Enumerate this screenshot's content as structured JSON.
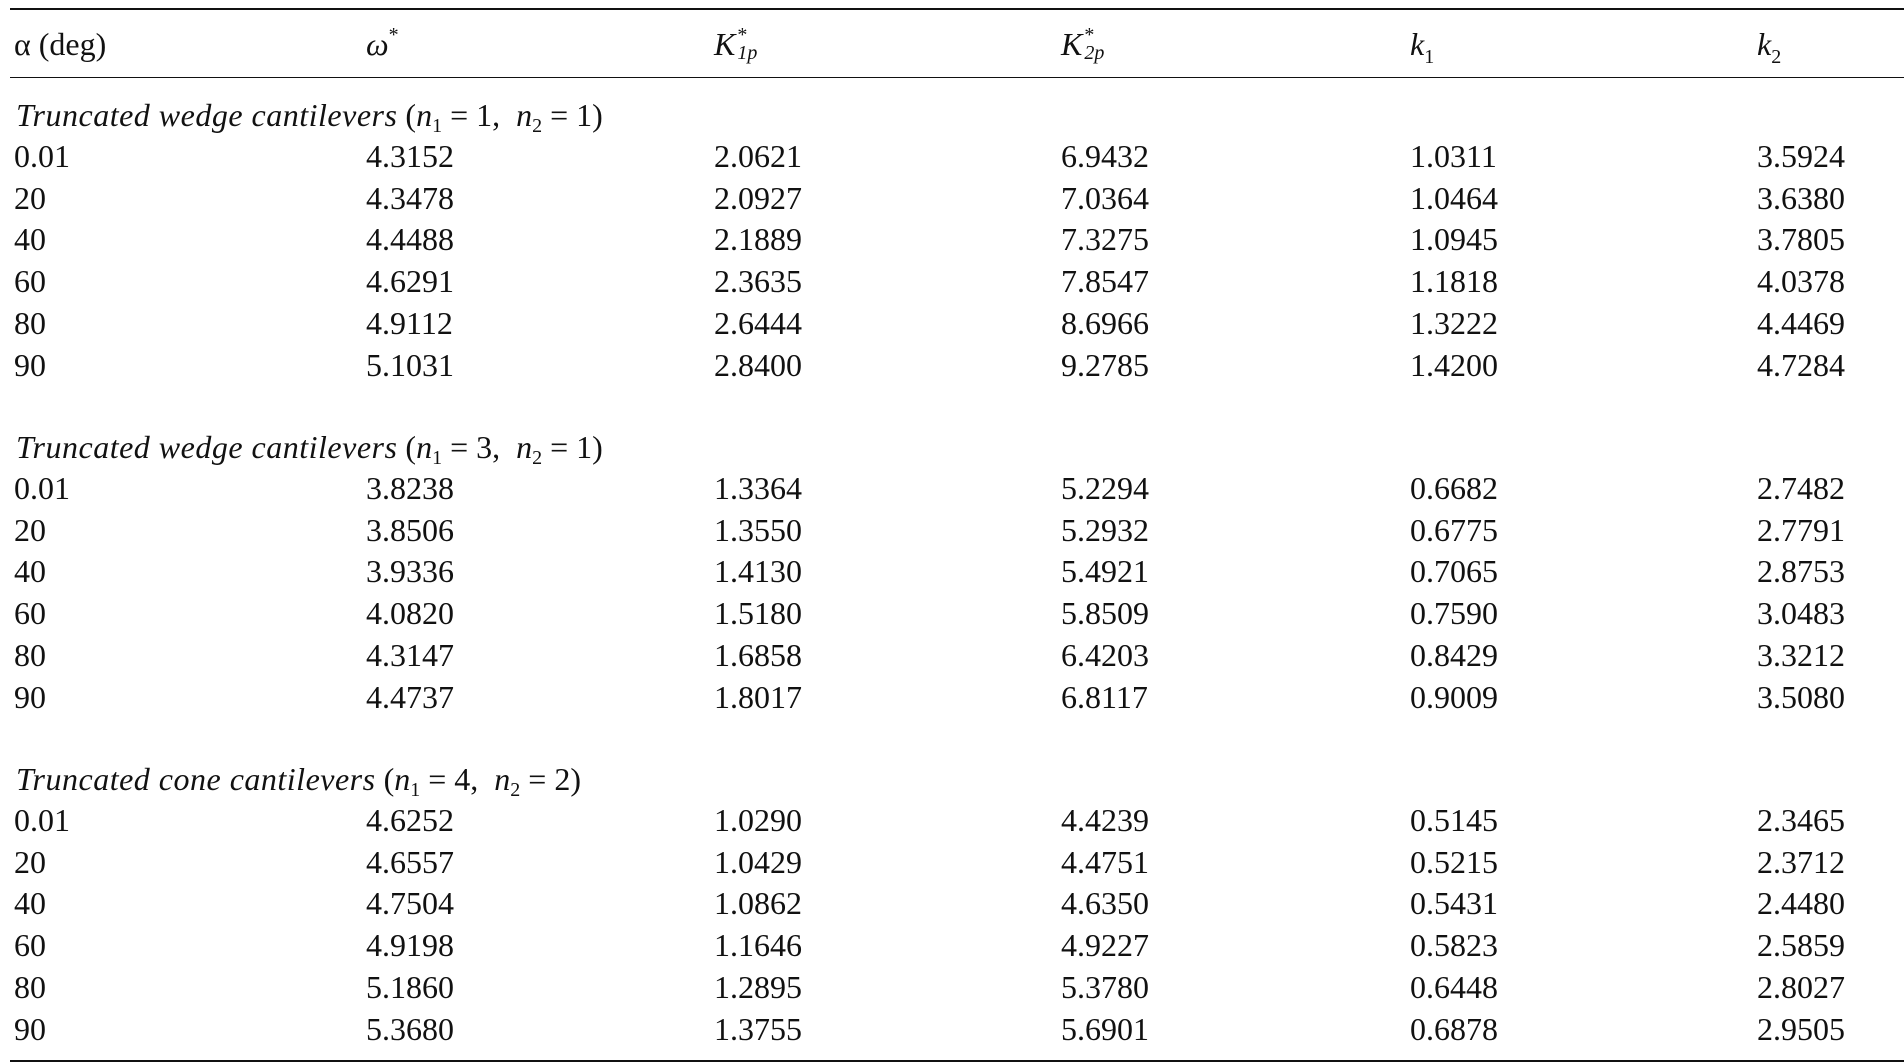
{
  "columns": {
    "alpha": "α (deg)",
    "omega": "ω",
    "omega_sup": "*",
    "K1p": "K",
    "K1p_sup": "*",
    "K1p_sub": "1p",
    "K2p": "K",
    "K2p_sup": "*",
    "K2p_sub": "2p",
    "k1": "k",
    "k1_sub": "1",
    "k2": "k",
    "k2_sub": "2"
  },
  "sections": [
    {
      "title": "Truncated wedge cantilevers",
      "params_open": "(",
      "n1_label": "n",
      "n1_sub": "1",
      "n1_eq": " = 1,  ",
      "n2_label": "n",
      "n2_sub": "2",
      "n2_eq": " = 1)",
      "rows": [
        [
          "0.01",
          "4.3152",
          "2.0621",
          "6.9432",
          "1.0311",
          "3.5924"
        ],
        [
          "20",
          "4.3478",
          "2.0927",
          "7.0364",
          "1.0464",
          "3.6380"
        ],
        [
          "40",
          "4.4488",
          "2.1889",
          "7.3275",
          "1.0945",
          "3.7805"
        ],
        [
          "60",
          "4.6291",
          "2.3635",
          "7.8547",
          "1.1818",
          "4.0378"
        ],
        [
          "80",
          "4.9112",
          "2.6444",
          "8.6966",
          "1.3222",
          "4.4469"
        ],
        [
          "90",
          "5.1031",
          "2.8400",
          "9.2785",
          "1.4200",
          "4.7284"
        ]
      ]
    },
    {
      "title": "Truncated wedge cantilevers",
      "params_open": "(",
      "n1_label": "n",
      "n1_sub": "1",
      "n1_eq": " = 3,  ",
      "n2_label": "n",
      "n2_sub": "2",
      "n2_eq": " = 1)",
      "rows": [
        [
          "0.01",
          "3.8238",
          "1.3364",
          "5.2294",
          "0.6682",
          "2.7482"
        ],
        [
          "20",
          "3.8506",
          "1.3550",
          "5.2932",
          "0.6775",
          "2.7791"
        ],
        [
          "40",
          "3.9336",
          "1.4130",
          "5.4921",
          "0.7065",
          "2.8753"
        ],
        [
          "60",
          "4.0820",
          "1.5180",
          "5.8509",
          "0.7590",
          "3.0483"
        ],
        [
          "80",
          "4.3147",
          "1.6858",
          "6.4203",
          "0.8429",
          "3.3212"
        ],
        [
          "90",
          "4.4737",
          "1.8017",
          "6.8117",
          "0.9009",
          "3.5080"
        ]
      ]
    },
    {
      "title": "Truncated cone cantilevers",
      "params_open": "(",
      "n1_label": "n",
      "n1_sub": "1",
      "n1_eq": " = 4,  ",
      "n2_label": "n",
      "n2_sub": "2",
      "n2_eq": " = 2)",
      "rows": [
        [
          "0.01",
          "4.6252",
          "1.0290",
          "4.4239",
          "0.5145",
          "2.3465"
        ],
        [
          "20",
          "4.6557",
          "1.0429",
          "4.4751",
          "0.5215",
          "2.3712"
        ],
        [
          "40",
          "4.7504",
          "1.0862",
          "4.6350",
          "0.5431",
          "2.4480"
        ],
        [
          "60",
          "4.9198",
          "1.1646",
          "4.9227",
          "0.5823",
          "2.5859"
        ],
        [
          "80",
          "5.1860",
          "1.2895",
          "5.3780",
          "0.6448",
          "2.8027"
        ],
        [
          "90",
          "5.3680",
          "1.3755",
          "5.6901",
          "0.6878",
          "2.9505"
        ]
      ]
    }
  ]
}
